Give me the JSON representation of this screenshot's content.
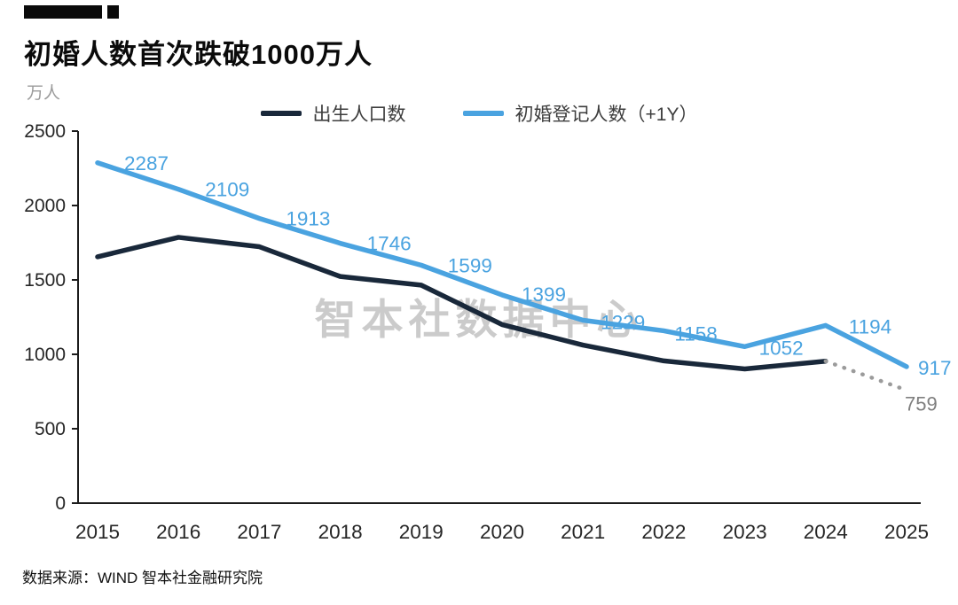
{
  "header": {
    "title": "初婚人数首次跌破1000万人",
    "unit": "万人"
  },
  "legend": [
    {
      "label": "出生人口数",
      "color": "#19283a"
    },
    {
      "label": "初婚登记人数（+1Y）",
      "color": "#4aa3e0"
    }
  ],
  "watermark": "智本社数据中心",
  "source": "数据来源：WIND 智本社金融研究院",
  "chart_data": {
    "type": "line",
    "title": "初婚人数首次跌破1000万人",
    "ylabel": "万人",
    "x": [
      2015,
      2016,
      2017,
      2018,
      2019,
      2020,
      2021,
      2022,
      2023,
      2024,
      2025
    ],
    "ylim": [
      0,
      2500
    ],
    "yticks": [
      0,
      500,
      1000,
      1500,
      2000,
      2500
    ],
    "grid": false,
    "legend_position": "top-center",
    "series": [
      {
        "name": "出生人口数",
        "color": "#19283a",
        "values": [
          1655,
          1786,
          1723,
          1523,
          1465,
          1200,
          1062,
          956,
          902,
          954,
          null
        ],
        "projection": {
          "from_year": 2024,
          "to_year": 2025,
          "value": 759,
          "style": "dotted",
          "color": "#9b9b9b",
          "label_color": "#7f7f7f"
        }
      },
      {
        "name": "初婚登记人数（+1Y）",
        "color": "#4aa3e0",
        "values": [
          2287,
          2109,
          1913,
          1746,
          1599,
          1399,
          1229,
          1158,
          1052,
          1194,
          917
        ],
        "labels_shown": true
      }
    ]
  }
}
